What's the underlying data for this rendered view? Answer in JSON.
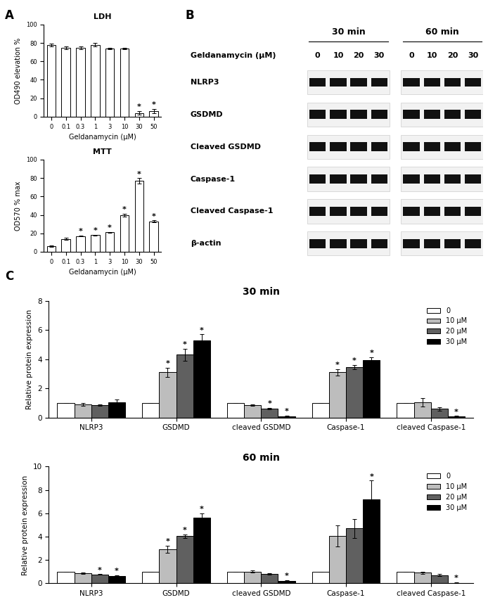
{
  "panels": [
    "A",
    "B",
    "C"
  ],
  "blot": {
    "groups": [
      "30 min",
      "60 min"
    ],
    "dose_label": "Geldanamycin (μM)",
    "doses": [
      "0",
      "10",
      "20",
      "30"
    ],
    "rows": [
      "NLRP3",
      "GSDMD",
      "Cleaved GSDMD",
      "Caspase-1",
      "Cleaved Caspase-1",
      "β-actin"
    ]
  },
  "chart_data": [
    {
      "type": "bar",
      "title": "LDH",
      "x_label": "Geldanamycin (μM)",
      "y_label": "OD490 elevation %",
      "categories": [
        "0",
        "0.1",
        "0.3",
        "1",
        "3",
        "10",
        "30",
        "50"
      ],
      "values": [
        78,
        75,
        75,
        78,
        74,
        74,
        4,
        6
      ],
      "errors": [
        1.5,
        1.5,
        1.5,
        2,
        1,
        1,
        2,
        2.5
      ],
      "annotations": [
        null,
        null,
        null,
        null,
        null,
        null,
        "*",
        "*"
      ],
      "color": "#ffffff",
      "ylim": [
        0,
        100
      ],
      "yticks": [
        0,
        20,
        40,
        60,
        80,
        100
      ],
      "grid": false
    },
    {
      "type": "bar",
      "title": "MTT",
      "x_label": "Geldanamycin (μM)",
      "y_label": "OD570 % max",
      "categories": [
        "0",
        "0.1",
        "0.3",
        "1",
        "3",
        "10",
        "30",
        "50"
      ],
      "values": [
        6,
        14,
        17,
        18,
        21,
        40,
        77,
        33
      ],
      "errors": [
        0.5,
        1,
        0.5,
        0.5,
        0.5,
        1.5,
        3,
        1
      ],
      "annotations": [
        null,
        null,
        "*",
        "*",
        "*",
        "*",
        "*",
        "*"
      ],
      "color": "#ffffff",
      "ylim": [
        0,
        100
      ],
      "yticks": [
        0,
        20,
        40,
        60,
        80,
        100
      ],
      "grid": false
    },
    {
      "type": "bar",
      "title": "30 min",
      "y_label": "Relative protein expression",
      "categories": [
        "NLRP3",
        "GSDMD",
        "cleaved GSDMD",
        "Caspase-1",
        "cleaved Caspase-1"
      ],
      "series": [
        {
          "name": "0",
          "color": "#ffffff",
          "values": [
            1,
            1,
            1,
            1,
            1
          ],
          "errors": [
            0,
            0,
            0,
            0,
            0
          ],
          "annotations": [
            null,
            null,
            null,
            null,
            null
          ]
        },
        {
          "name": "10 μM",
          "color": "#bdbdbd",
          "values": [
            0.9,
            3.1,
            0.85,
            3.1,
            1.05
          ],
          "errors": [
            0.08,
            0.3,
            0.05,
            0.2,
            0.3
          ],
          "annotations": [
            null,
            "*",
            null,
            "*",
            null
          ]
        },
        {
          "name": "20 μM",
          "color": "#606060",
          "values": [
            0.85,
            4.3,
            0.6,
            3.45,
            0.6
          ],
          "errors": [
            0.05,
            0.4,
            0.05,
            0.15,
            0.12
          ],
          "annotations": [
            null,
            "*",
            "*",
            "*",
            null
          ]
        },
        {
          "name": "30 μM",
          "color": "#000000",
          "values": [
            1.05,
            5.3,
            0.1,
            3.95,
            0.08
          ],
          "errors": [
            0.2,
            0.4,
            0.03,
            0.2,
            0.03
          ],
          "annotations": [
            null,
            "*",
            "*",
            "*",
            "*"
          ]
        }
      ],
      "ylim": [
        0,
        8
      ],
      "yticks": [
        0,
        2,
        4,
        6,
        8
      ],
      "legend": "upper right",
      "grid": false
    },
    {
      "type": "bar",
      "title": "60 min",
      "y_label": "Relative protein expression",
      "categories": [
        "NLRP3",
        "GSDMD",
        "cleaved GSDMD",
        "Caspase-1",
        "cleaved Caspase-1"
      ],
      "series": [
        {
          "name": "0",
          "color": "#ffffff",
          "values": [
            1,
            1,
            1,
            1,
            1
          ],
          "errors": [
            0,
            0,
            0,
            0,
            0
          ],
          "annotations": [
            null,
            null,
            null,
            null,
            null
          ]
        },
        {
          "name": "10 μM",
          "color": "#bdbdbd",
          "values": [
            0.85,
            2.9,
            1.0,
            4.05,
            0.9
          ],
          "errors": [
            0.05,
            0.3,
            0.08,
            0.9,
            0.07
          ],
          "annotations": [
            null,
            "*",
            null,
            null,
            null
          ]
        },
        {
          "name": "20 μM",
          "color": "#606060",
          "values": [
            0.75,
            4.05,
            0.8,
            4.7,
            0.7
          ],
          "errors": [
            0.03,
            0.15,
            0.05,
            0.8,
            0.1
          ],
          "annotations": [
            "*",
            "*",
            null,
            null,
            null
          ]
        },
        {
          "name": "30 μM",
          "color": "#000000",
          "values": [
            0.65,
            5.6,
            0.2,
            7.2,
            0.05
          ],
          "errors": [
            0.03,
            0.4,
            0.05,
            1.6,
            0.02
          ],
          "annotations": [
            "*",
            "*",
            "*",
            "*",
            "*"
          ]
        }
      ],
      "ylim": [
        0,
        10
      ],
      "yticks": [
        0,
        2,
        4,
        6,
        8,
        10
      ],
      "legend": "upper right",
      "grid": false
    }
  ]
}
